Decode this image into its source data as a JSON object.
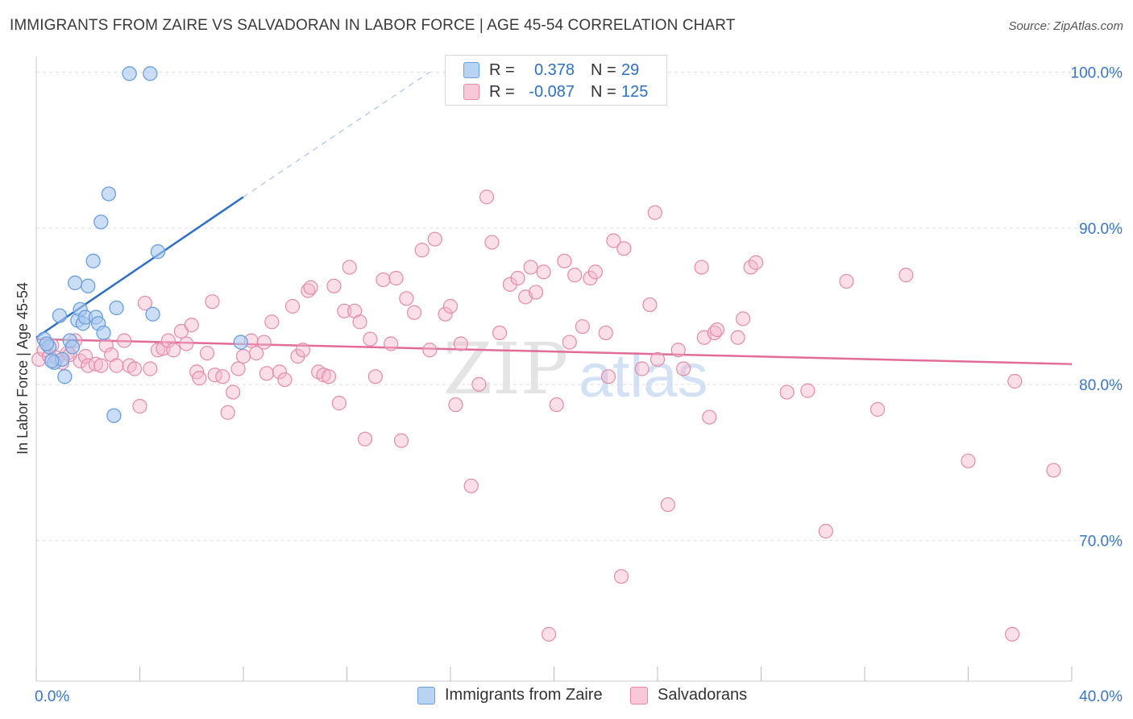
{
  "title": "IMMIGRANTS FROM ZAIRE VS SALVADORAN IN LABOR FORCE | AGE 45-54 CORRELATION CHART",
  "source": "Source: ZipAtlas.com",
  "watermark": {
    "zip": "ZIP",
    "atlas": "atlas"
  },
  "legend": {
    "zaire": {
      "r_label": "R =",
      "r_value": "0.378",
      "n_label": "N =",
      "n_value": "29"
    },
    "salvadoran": {
      "r_label": "R =",
      "r_value": "-0.087",
      "n_label": "N =",
      "n_value": "125"
    }
  },
  "colors": {
    "zaire_fill": "#a9c8f0",
    "zaire_stroke": "#6a9fdc",
    "zaire_line": "#2f6fc4",
    "salv_fill": "#f5b6cb",
    "salv_stroke": "#e48aab",
    "salv_line": "#e26b98",
    "axis_text": "#3a76c8",
    "grid": "#dddddd"
  },
  "chart_data": {
    "type": "scatter",
    "title": "IMMIGRANTS FROM ZAIRE VS SALVADORAN IN LABOR FORCE | AGE 45-54 CORRELATION CHART",
    "xlabel": "",
    "ylabel": "In Labor Force | Age 45-54",
    "xlim": [
      0,
      40
    ],
    "ylim": [
      61,
      101
    ],
    "x_tick_labels": [
      "0.0%",
      "40.0%"
    ],
    "y_ticks": [
      70,
      80,
      90,
      100
    ],
    "y_tick_labels": [
      "70.0%",
      "80.0%",
      "90.0%",
      "100.0%"
    ],
    "grid": true,
    "series": [
      {
        "name": "Immigrants from Zaire",
        "r": 0.378,
        "n": 29,
        "trend": {
          "x0": 0.0,
          "y0": 83.0,
          "x1": 8.0,
          "y1": 92.0,
          "dash_to_x": 15.2,
          "dash_to_y": 100.0
        },
        "points": [
          [
            0.3,
            82.9
          ],
          [
            0.5,
            82.4
          ],
          [
            0.7,
            81.4
          ],
          [
            0.9,
            84.4
          ],
          [
            1.1,
            80.5
          ],
          [
            1.0,
            81.6
          ],
          [
            1.3,
            82.8
          ],
          [
            1.4,
            82.4
          ],
          [
            1.5,
            86.5
          ],
          [
            1.6,
            84.1
          ],
          [
            1.7,
            84.8
          ],
          [
            1.8,
            83.9
          ],
          [
            1.9,
            84.3
          ],
          [
            2.0,
            86.3
          ],
          [
            2.2,
            87.9
          ],
          [
            2.3,
            84.3
          ],
          [
            2.4,
            83.9
          ],
          [
            2.5,
            90.4
          ],
          [
            2.6,
            83.3
          ],
          [
            2.8,
            92.2
          ],
          [
            3.0,
            78.0
          ],
          [
            3.1,
            84.9
          ],
          [
            3.6,
            99.9
          ],
          [
            4.4,
            99.9
          ],
          [
            4.5,
            84.5
          ],
          [
            4.7,
            88.5
          ],
          [
            7.9,
            82.7
          ],
          [
            0.6,
            81.5
          ],
          [
            0.4,
            82.6
          ]
        ]
      },
      {
        "name": "Salvadorans",
        "r": -0.087,
        "n": 125,
        "trend": {
          "x0": 0.0,
          "y0": 82.9,
          "x1": 40.0,
          "y1": 81.3
        },
        "points": [
          [
            0.1,
            81.6
          ],
          [
            0.3,
            82.2
          ],
          [
            0.5,
            81.8
          ],
          [
            0.6,
            82.5
          ],
          [
            0.8,
            81.7
          ],
          [
            1.0,
            81.4
          ],
          [
            1.2,
            82.0
          ],
          [
            1.3,
            81.9
          ],
          [
            1.5,
            82.8
          ],
          [
            1.7,
            81.5
          ],
          [
            1.9,
            81.8
          ],
          [
            2.0,
            81.2
          ],
          [
            2.3,
            81.3
          ],
          [
            2.5,
            81.2
          ],
          [
            2.7,
            82.5
          ],
          [
            2.9,
            81.9
          ],
          [
            3.1,
            81.2
          ],
          [
            3.4,
            82.8
          ],
          [
            3.6,
            81.2
          ],
          [
            3.8,
            81.0
          ],
          [
            4.0,
            78.6
          ],
          [
            4.2,
            85.2
          ],
          [
            4.4,
            81.0
          ],
          [
            4.7,
            82.2
          ],
          [
            4.9,
            82.3
          ],
          [
            5.1,
            82.8
          ],
          [
            5.3,
            82.2
          ],
          [
            5.6,
            83.4
          ],
          [
            5.8,
            82.6
          ],
          [
            6.0,
            83.8
          ],
          [
            6.2,
            80.8
          ],
          [
            6.3,
            80.4
          ],
          [
            6.6,
            82.0
          ],
          [
            6.8,
            85.3
          ],
          [
            6.9,
            80.6
          ],
          [
            7.2,
            80.5
          ],
          [
            7.4,
            78.2
          ],
          [
            7.6,
            79.5
          ],
          [
            7.8,
            81.0
          ],
          [
            8.0,
            81.8
          ],
          [
            8.3,
            82.8
          ],
          [
            8.5,
            82.0
          ],
          [
            8.8,
            82.7
          ],
          [
            8.9,
            80.7
          ],
          [
            9.1,
            84.0
          ],
          [
            9.4,
            80.8
          ],
          [
            9.6,
            80.3
          ],
          [
            9.9,
            85.0
          ],
          [
            10.1,
            81.8
          ],
          [
            10.3,
            82.2
          ],
          [
            10.5,
            86.0
          ],
          [
            10.6,
            86.2
          ],
          [
            10.9,
            80.8
          ],
          [
            11.1,
            80.6
          ],
          [
            11.3,
            80.5
          ],
          [
            11.5,
            86.3
          ],
          [
            11.7,
            78.8
          ],
          [
            11.9,
            84.7
          ],
          [
            12.1,
            87.5
          ],
          [
            12.3,
            84.7
          ],
          [
            12.5,
            84.0
          ],
          [
            12.7,
            76.5
          ],
          [
            12.9,
            82.9
          ],
          [
            13.1,
            80.5
          ],
          [
            13.4,
            86.7
          ],
          [
            13.7,
            82.6
          ],
          [
            13.9,
            86.8
          ],
          [
            14.1,
            76.4
          ],
          [
            14.3,
            85.5
          ],
          [
            14.6,
            84.6
          ],
          [
            14.9,
            88.6
          ],
          [
            15.2,
            82.2
          ],
          [
            15.4,
            89.3
          ],
          [
            15.8,
            84.5
          ],
          [
            16.0,
            85.0
          ],
          [
            16.2,
            78.7
          ],
          [
            16.4,
            82.6
          ],
          [
            16.8,
            73.5
          ],
          [
            17.1,
            80.0
          ],
          [
            17.4,
            92.0
          ],
          [
            17.6,
            89.1
          ],
          [
            17.9,
            83.3
          ],
          [
            18.3,
            86.4
          ],
          [
            18.6,
            86.8
          ],
          [
            18.9,
            85.6
          ],
          [
            19.1,
            87.5
          ],
          [
            19.3,
            85.9
          ],
          [
            19.6,
            87.2
          ],
          [
            19.8,
            64.0
          ],
          [
            20.1,
            78.7
          ],
          [
            20.4,
            87.9
          ],
          [
            20.6,
            82.7
          ],
          [
            20.8,
            87.0
          ],
          [
            21.1,
            83.7
          ],
          [
            21.4,
            86.8
          ],
          [
            21.6,
            87.2
          ],
          [
            22.0,
            83.3
          ],
          [
            22.1,
            80.5
          ],
          [
            22.3,
            89.2
          ],
          [
            22.6,
            67.7
          ],
          [
            22.7,
            88.7
          ],
          [
            23.4,
            81.0
          ],
          [
            23.7,
            85.1
          ],
          [
            23.9,
            91.0
          ],
          [
            24.0,
            81.6
          ],
          [
            24.4,
            72.3
          ],
          [
            24.8,
            82.2
          ],
          [
            25.0,
            81.0
          ],
          [
            25.7,
            87.5
          ],
          [
            25.8,
            83.0
          ],
          [
            26.0,
            77.9
          ],
          [
            26.2,
            83.3
          ],
          [
            26.3,
            83.5
          ],
          [
            27.1,
            83.0
          ],
          [
            27.3,
            84.2
          ],
          [
            27.6,
            87.5
          ],
          [
            27.8,
            87.8
          ],
          [
            29.0,
            79.5
          ],
          [
            29.8,
            79.6
          ],
          [
            30.5,
            70.6
          ],
          [
            31.3,
            86.6
          ],
          [
            32.5,
            78.4
          ],
          [
            33.6,
            87.0
          ],
          [
            36.0,
            75.1
          ],
          [
            37.7,
            64.0
          ],
          [
            37.8,
            80.2
          ],
          [
            39.3,
            74.5
          ]
        ]
      }
    ]
  }
}
